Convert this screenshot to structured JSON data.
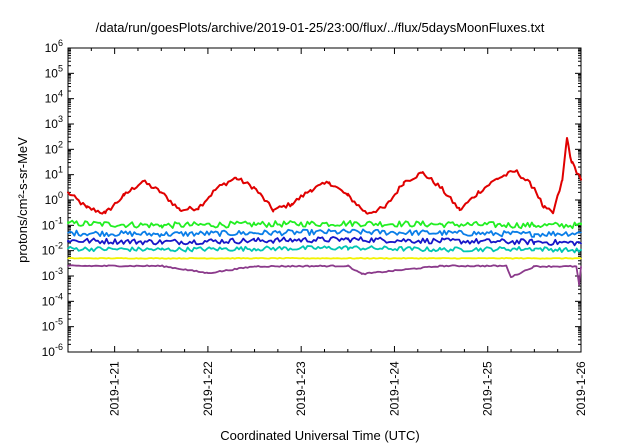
{
  "chart_data": {
    "type": "line",
    "title": "/data/run/goesPlots/archive/2019-01-25/23:00/flux/../flux/5daysMoonFluxes.txt",
    "xlabel": "Coordinated Universal Time (UTC)",
    "ylabel": "protons/cm²-s-sr-MeV",
    "x_range": [
      "2019-01-20T12:00",
      "2019-01-26T00:00"
    ],
    "x_ticks": [
      "2019-1-21",
      "2019-1-22",
      "2019-1-23",
      "2019-1-24",
      "2019-1-25",
      "2019-1-26"
    ],
    "y_scale": "log",
    "y_range": [
      1e-06,
      1000000.0
    ],
    "y_tick_exponents": [
      -6,
      -5,
      -4,
      -3,
      -2,
      -1,
      0,
      1,
      2,
      3,
      4,
      5,
      6
    ],
    "y_tick_base": "10",
    "grid": false,
    "legend": "none",
    "series": [
      {
        "color": "#e00000",
        "x_days": [
          0.0,
          0.2,
          0.4,
          0.6,
          0.8,
          1.0,
          1.2,
          1.4,
          1.6,
          1.8,
          2.0,
          2.2,
          2.4,
          2.6,
          2.8,
          3.0,
          3.2,
          3.4,
          3.6,
          3.8,
          4.0,
          4.2,
          4.4,
          4.6,
          4.8,
          5.0,
          5.1,
          5.2,
          5.3,
          5.35,
          5.4,
          5.5
        ],
        "values": [
          2.0,
          0.5,
          0.3,
          1.5,
          5.5,
          2.0,
          0.4,
          0.5,
          3.0,
          7.5,
          3.0,
          0.4,
          0.7,
          2.5,
          5.0,
          1.5,
          0.3,
          0.5,
          5.0,
          12.0,
          3.0,
          0.4,
          2.0,
          7.0,
          14.0,
          3.0,
          0.5,
          0.3,
          6.0,
          280.0,
          30.0,
          7.0
        ]
      },
      {
        "color": "#22ee22",
        "x_days": [
          0.0,
          1.0,
          2.0,
          3.0,
          4.0,
          5.0,
          5.5
        ],
        "values": [
          0.12,
          0.1,
          0.11,
          0.12,
          0.11,
          0.1,
          0.1
        ]
      },
      {
        "color": "#0a7ee8",
        "x_days": [
          0.0,
          1.0,
          2.0,
          3.0,
          4.0,
          5.0,
          5.5
        ],
        "values": [
          0.05,
          0.045,
          0.05,
          0.055,
          0.05,
          0.045,
          0.05
        ]
      },
      {
        "color": "#1616c8",
        "x_days": [
          0.0,
          1.0,
          2.0,
          3.0,
          4.0,
          5.0,
          5.5
        ],
        "values": [
          0.025,
          0.022,
          0.025,
          0.028,
          0.024,
          0.022,
          0.02
        ]
      },
      {
        "color": "#00c6b2",
        "x_days": [
          0.0,
          1.0,
          2.0,
          3.0,
          4.0,
          5.0,
          5.5
        ],
        "values": [
          0.012,
          0.011,
          0.012,
          0.013,
          0.011,
          0.012,
          0.01
        ]
      },
      {
        "color": "#f2f200",
        "x_days": [
          0.0,
          1.0,
          2.0,
          3.0,
          4.0,
          5.0,
          5.5
        ],
        "values": [
          0.005,
          0.005,
          0.005,
          0.005,
          0.005,
          0.005,
          0.005
        ]
      },
      {
        "color": "#8b3a8b",
        "x_days": [
          0.0,
          1.0,
          1.5,
          2.0,
          3.0,
          3.15,
          4.0,
          4.7,
          4.75,
          5.0,
          5.45,
          5.48,
          5.5
        ],
        "values": [
          0.0025,
          0.0025,
          0.0013,
          0.0024,
          0.0025,
          0.0012,
          0.0025,
          0.0025,
          0.0009,
          0.0024,
          0.0024,
          0.00045,
          0.0022
        ]
      }
    ]
  }
}
